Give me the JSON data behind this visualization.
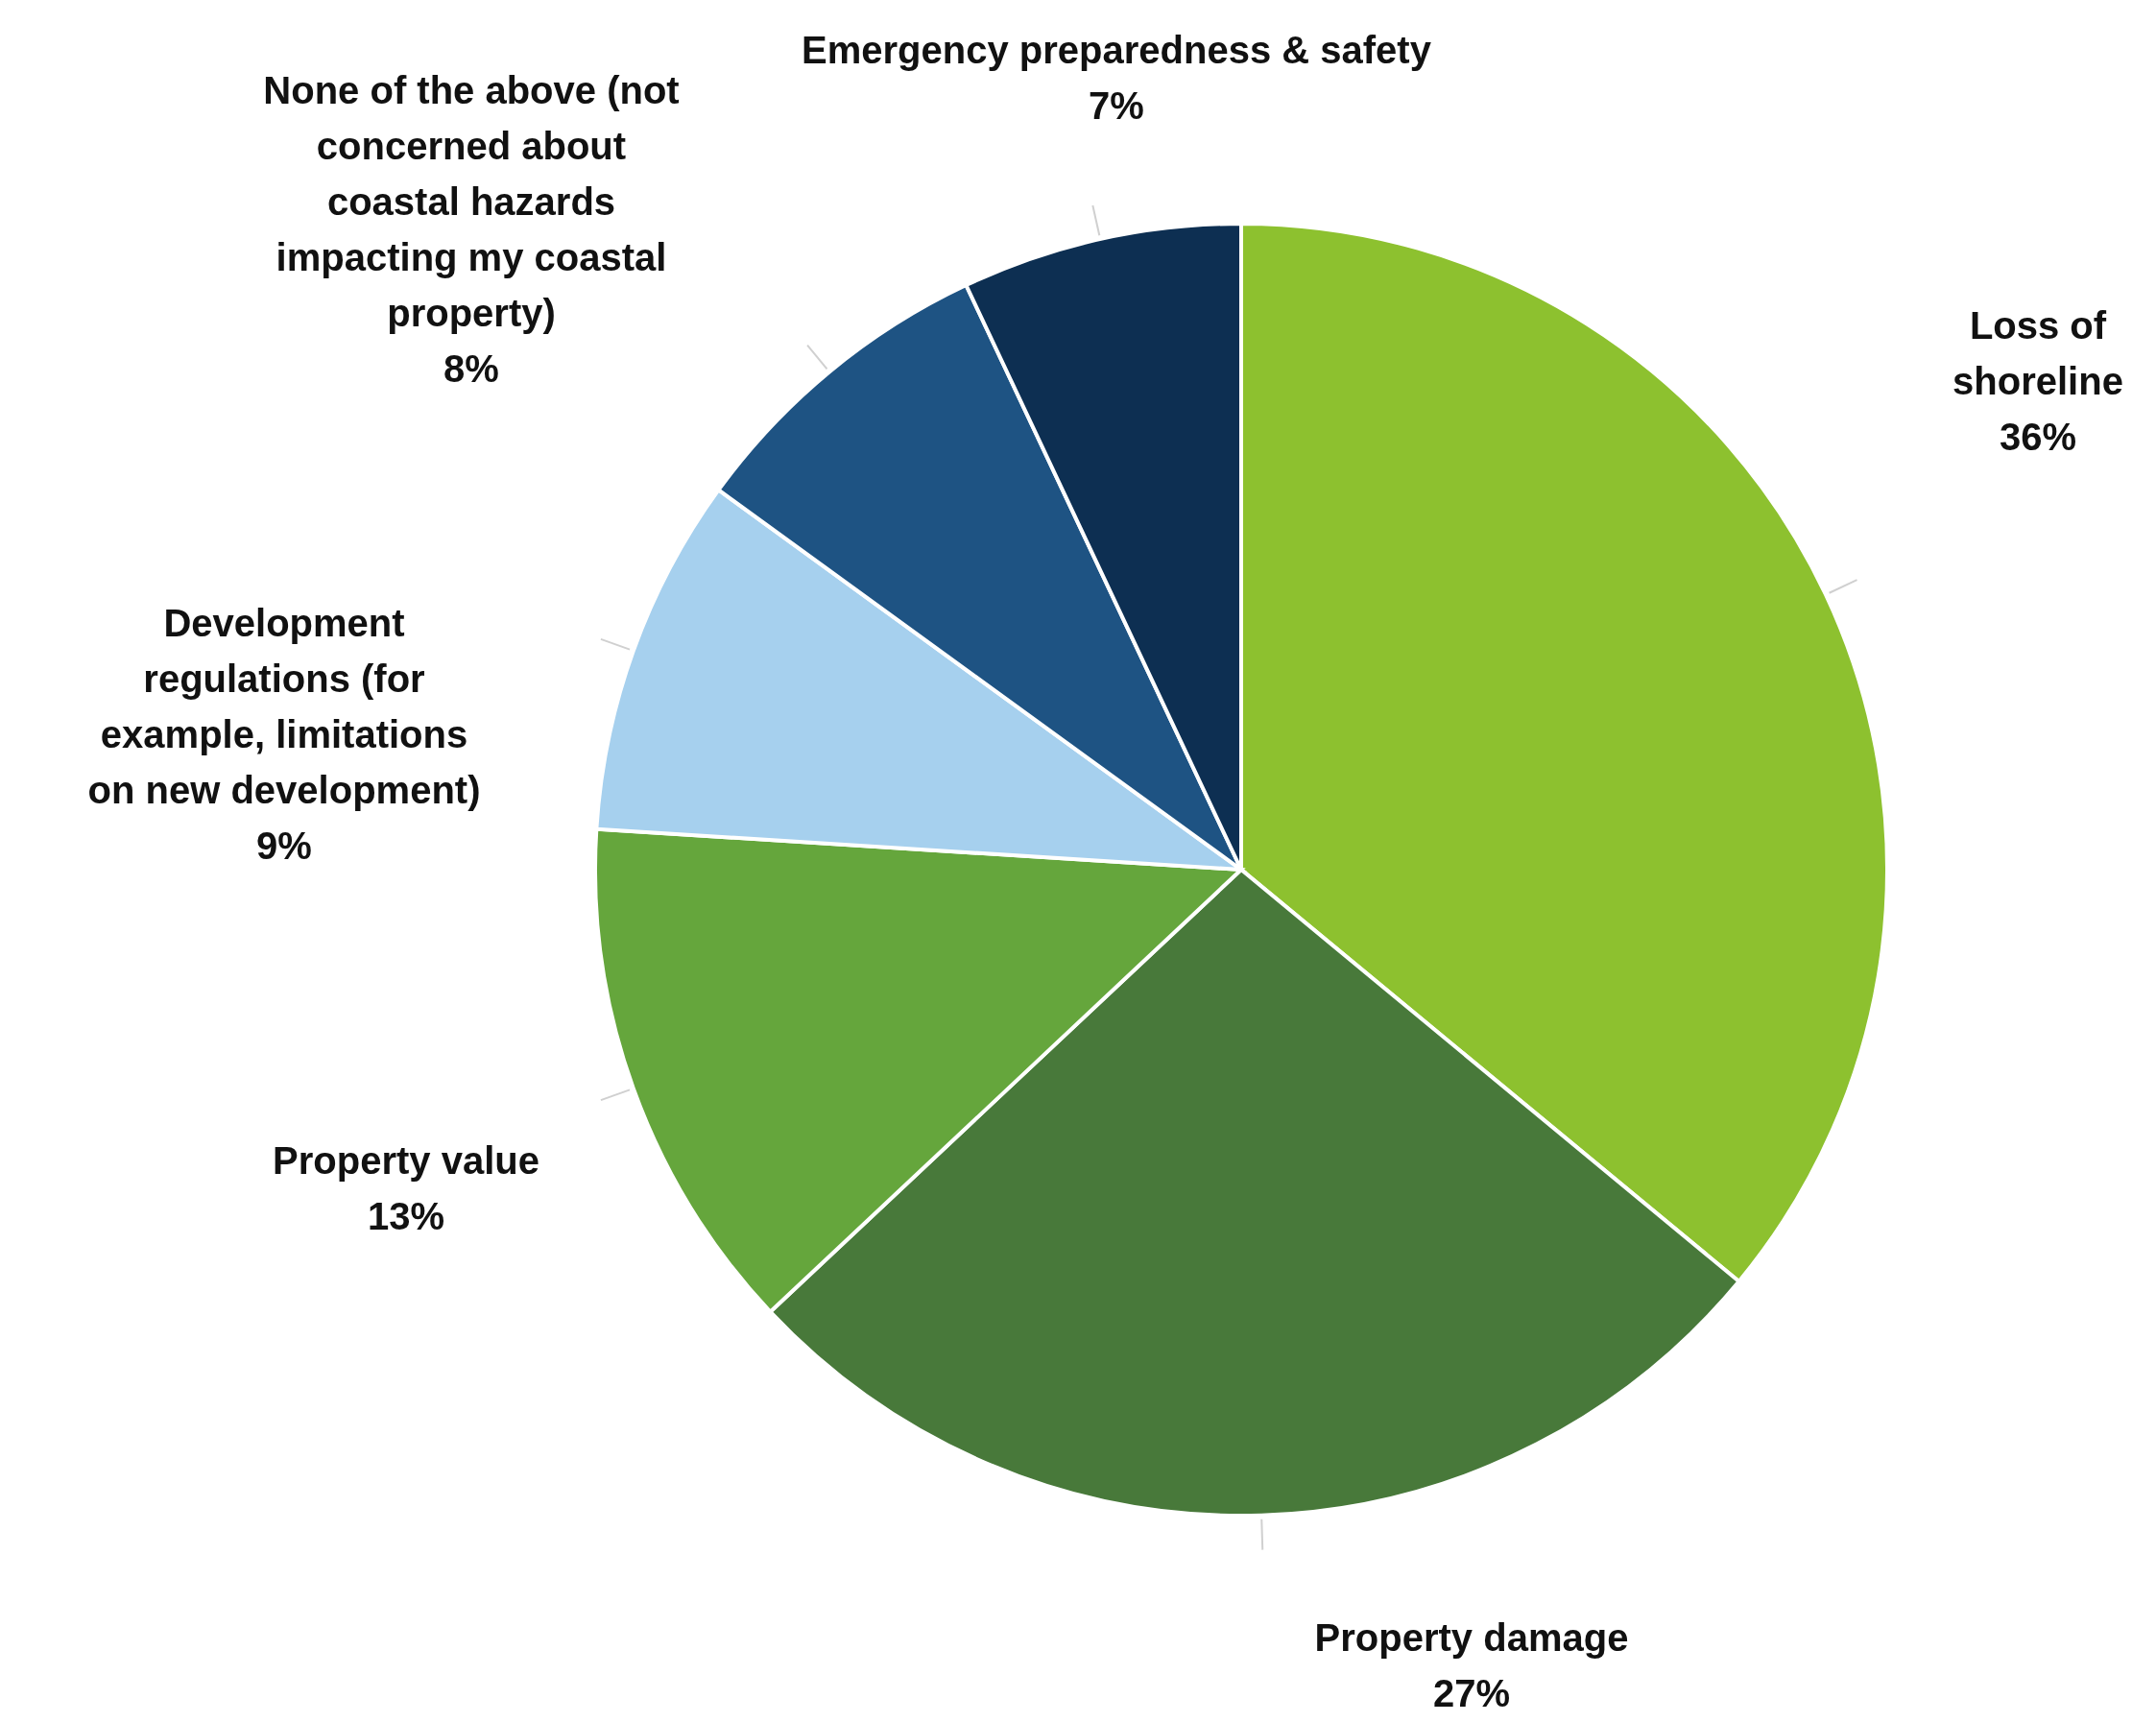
{
  "chart_data": {
    "type": "pie",
    "categories": [
      "Loss of shoreline",
      "Property damage",
      "Property value",
      "Development regulations (for example, limitations on new development)",
      "None of the above (not concerned about coastal hazards impacting my coastal property)",
      "Emergency preparedness & safety"
    ],
    "values": [
      36,
      27,
      13,
      9,
      8,
      7
    ],
    "colors": [
      "#8dc12f",
      "#48793a",
      "#65a63c",
      "#a6d0ee",
      "#1e5383",
      "#0d2f52"
    ],
    "value_labels": [
      "36%",
      "27%",
      "13%",
      "9%",
      "8%",
      "7%"
    ]
  }
}
